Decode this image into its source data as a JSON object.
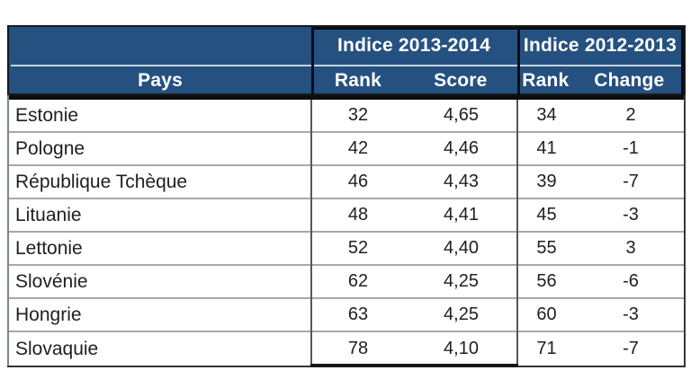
{
  "colors": {
    "header_bg": "#255180",
    "header_text": "#ffffff",
    "body_text": "#202020",
    "row_divider": "#a8a8a8",
    "header_separator": "#c6d2e2",
    "black_rule": "#0b0d11"
  },
  "chart_data": {
    "type": "table",
    "title": "",
    "column_groups": [
      "",
      "Indice 2013-2014",
      "Indice 2012-2013"
    ],
    "columns": [
      "Pays",
      "Rank",
      "Score",
      "Rank",
      "Change"
    ],
    "rows": [
      [
        "Estonie",
        "32",
        "4,65",
        "34",
        "2"
      ],
      [
        "Pologne",
        "42",
        "4,46",
        "41",
        "-1"
      ],
      [
        "République Tchèque",
        "46",
        "4,43",
        "39",
        "-7"
      ],
      [
        "Lituanie",
        "48",
        "4,41",
        "45",
        "-3"
      ],
      [
        "Lettonie",
        "52",
        "4,40",
        "55",
        "3"
      ],
      [
        "Slovénie",
        "62",
        "4,25",
        "56",
        "-6"
      ],
      [
        "Hongrie",
        "63",
        "4,25",
        "60",
        "-3"
      ],
      [
        "Slovaquie",
        "78",
        "4,10",
        "71",
        "-7"
      ]
    ]
  }
}
